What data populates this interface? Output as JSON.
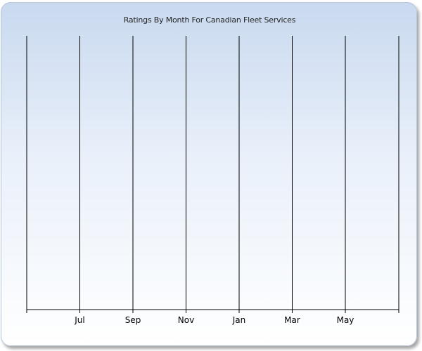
{
  "chart_data": {
    "type": "line",
    "title": "Ratings By Month For Canadian Fleet Services",
    "xlabel": "",
    "ylabel": "",
    "categories": [
      "Jul",
      "Sep",
      "Nov",
      "Jan",
      "Mar",
      "May"
    ],
    "series": [],
    "grid": {
      "vertical": true,
      "horizontal": false
    },
    "legend": "none"
  }
}
